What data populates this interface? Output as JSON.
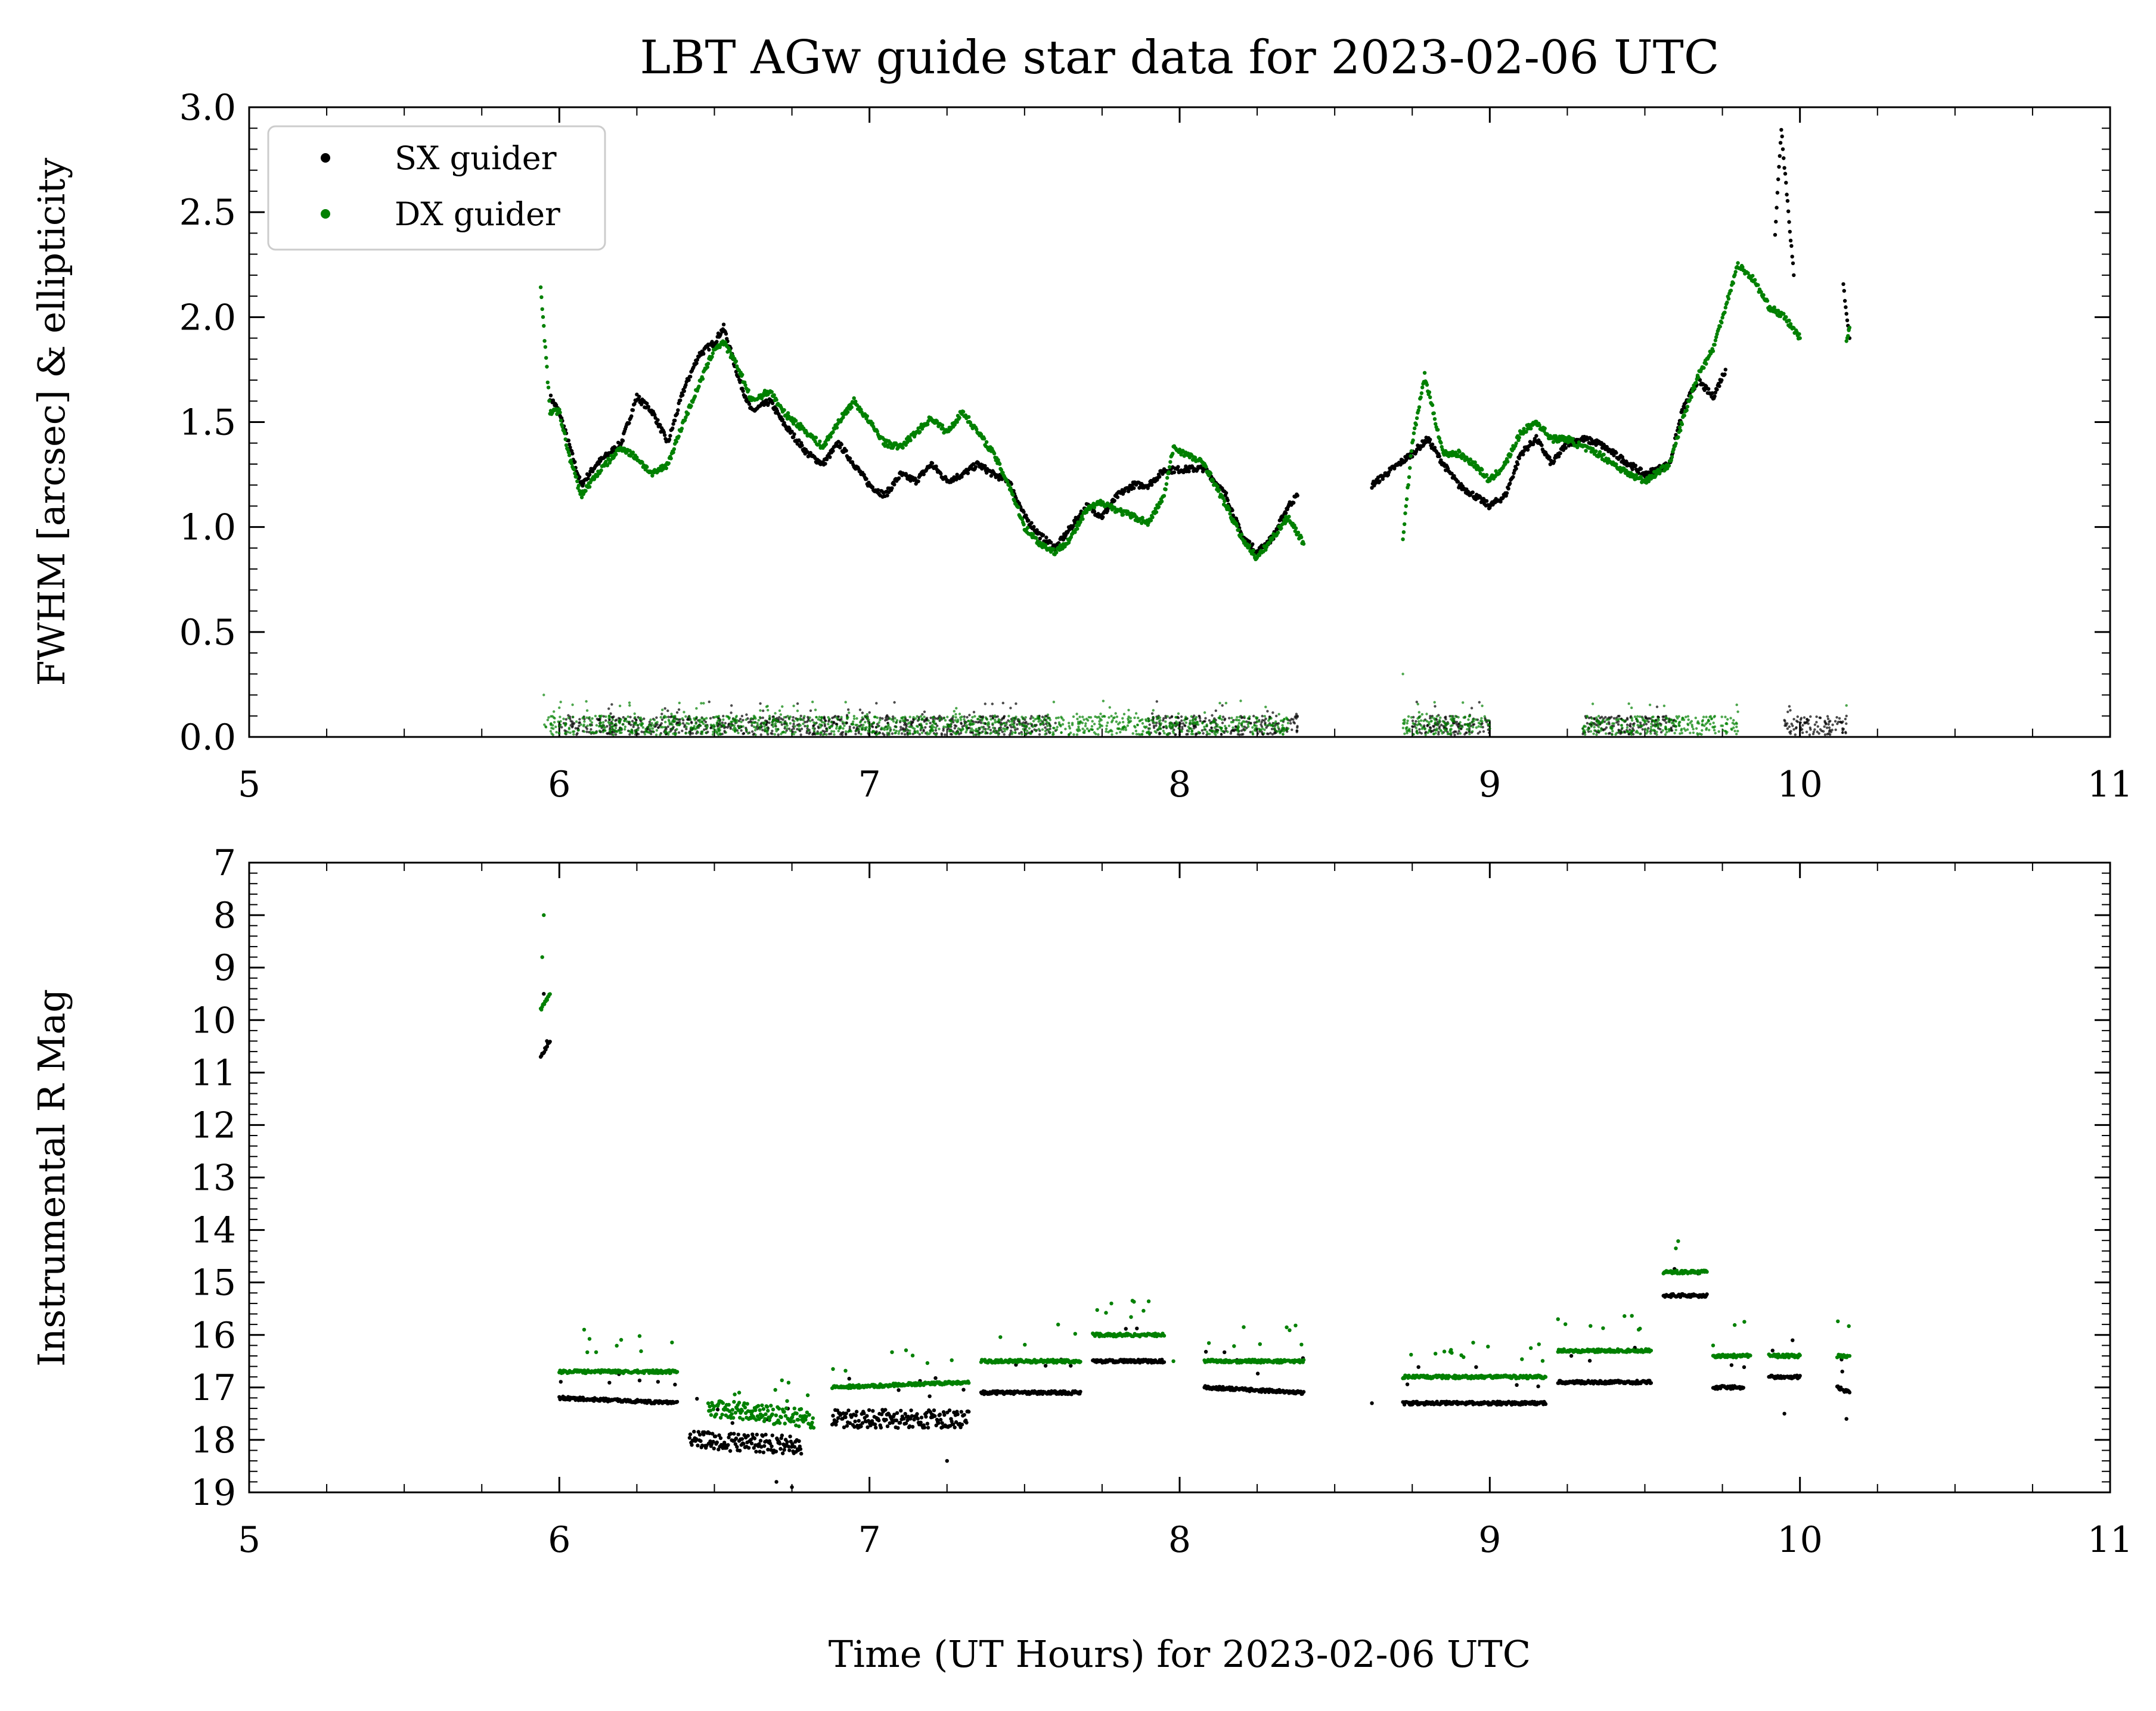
{
  "chart_data": [
    {
      "type": "scatter",
      "title": "LBT AGw guide star data for 2023-02-06 UTC",
      "xlabel": "",
      "ylabel": "FWHM [arcsec] & ellipticity",
      "xlim": [
        5,
        11
      ],
      "ylim": [
        0,
        3
      ],
      "xticks": [
        "5",
        "6",
        "7",
        "8",
        "9",
        "10",
        "11"
      ],
      "yticks": [
        "0.0",
        "0.5",
        "1.0",
        "1.5",
        "2.0",
        "2.5",
        "3.0"
      ],
      "legend": {
        "placement": "top-left",
        "entries": [
          {
            "label": "SX guider",
            "color": "#000000"
          },
          {
            "label": "DX guider",
            "color": "#008000"
          }
        ]
      },
      "series": [
        {
          "name": "SX guider",
          "color": "#000000",
          "fwhm": [
            [
              5.97,
              1.62
            ],
            [
              6.0,
              1.55
            ],
            [
              6.03,
              1.4
            ],
            [
              6.07,
              1.2
            ],
            [
              6.12,
              1.3
            ],
            [
              6.2,
              1.4
            ],
            [
              6.25,
              1.62
            ],
            [
              6.3,
              1.55
            ],
            [
              6.35,
              1.4
            ],
            [
              6.4,
              1.65
            ],
            [
              6.45,
              1.82
            ],
            [
              6.5,
              1.88
            ],
            [
              6.53,
              1.95
            ],
            [
              6.58,
              1.7
            ],
            [
              6.62,
              1.55
            ],
            [
              6.68,
              1.6
            ],
            [
              6.72,
              1.5
            ],
            [
              6.8,
              1.35
            ],
            [
              6.85,
              1.3
            ],
            [
              6.9,
              1.4
            ],
            [
              6.95,
              1.3
            ],
            [
              7.0,
              1.2
            ],
            [
              7.05,
              1.15
            ],
            [
              7.1,
              1.25
            ],
            [
              7.15,
              1.22
            ],
            [
              7.2,
              1.3
            ],
            [
              7.25,
              1.22
            ],
            [
              7.3,
              1.25
            ],
            [
              7.35,
              1.3
            ],
            [
              7.4,
              1.25
            ],
            [
              7.45,
              1.22
            ],
            [
              7.5,
              1.05
            ],
            [
              7.55,
              0.96
            ],
            [
              7.6,
              0.9
            ],
            [
              7.65,
              1.0
            ],
            [
              7.7,
              1.1
            ],
            [
              7.75,
              1.05
            ],
            [
              7.8,
              1.15
            ],
            [
              7.85,
              1.2
            ],
            [
              7.9,
              1.2
            ],
            [
              7.95,
              1.27
            ],
            [
              8.08,
              1.28
            ],
            [
              8.15,
              1.15
            ],
            [
              8.2,
              0.96
            ],
            [
              8.25,
              0.88
            ],
            [
              8.3,
              0.95
            ],
            [
              8.35,
              1.1
            ],
            [
              8.38,
              1.15
            ],
            [
              8.62,
              1.2
            ],
            [
              8.75,
              1.35
            ],
            [
              8.8,
              1.42
            ],
            [
              8.85,
              1.3
            ],
            [
              8.9,
              1.2
            ],
            [
              8.95,
              1.15
            ],
            [
              9.0,
              1.1
            ],
            [
              9.05,
              1.15
            ],
            [
              9.1,
              1.35
            ],
            [
              9.15,
              1.42
            ],
            [
              9.2,
              1.3
            ],
            [
              9.25,
              1.4
            ],
            [
              9.3,
              1.42
            ],
            [
              9.35,
              1.4
            ],
            [
              9.4,
              1.35
            ],
            [
              9.45,
              1.3
            ],
            [
              9.5,
              1.25
            ],
            [
              9.58,
              1.3
            ],
            [
              9.62,
              1.55
            ],
            [
              9.67,
              1.7
            ],
            [
              9.72,
              1.62
            ],
            [
              9.76,
              1.75
            ],
            [
              9.92,
              2.4
            ],
            [
              9.94,
              2.9
            ],
            [
              9.98,
              2.2
            ],
            [
              10.14,
              2.15
            ],
            [
              10.16,
              1.9
            ]
          ],
          "ellipticity": [
            [
              6.0,
              0.05
            ],
            [
              6.2,
              0.04
            ],
            [
              6.5,
              0.05
            ],
            [
              6.8,
              0.04
            ],
            [
              7.0,
              0.04
            ],
            [
              7.3,
              0.05
            ],
            [
              7.6,
              0.03
            ],
            [
              7.9,
              0.04
            ],
            [
              8.2,
              0.03
            ],
            [
              8.38,
              0.1
            ],
            [
              8.75,
              0.05
            ],
            [
              9.0,
              0.04
            ],
            [
              9.3,
              0.04
            ],
            [
              9.6,
              0.05
            ],
            [
              9.95,
              0.08
            ],
            [
              10.15,
              0.1
            ]
          ]
        },
        {
          "name": "DX guider",
          "color": "#008000",
          "fwhm": [
            [
              5.94,
              2.15
            ],
            [
              5.97,
              1.55
            ],
            [
              6.0,
              1.55
            ],
            [
              6.03,
              1.35
            ],
            [
              6.07,
              1.15
            ],
            [
              6.12,
              1.25
            ],
            [
              6.2,
              1.38
            ],
            [
              6.25,
              1.33
            ],
            [
              6.3,
              1.25
            ],
            [
              6.35,
              1.3
            ],
            [
              6.4,
              1.5
            ],
            [
              6.5,
              1.85
            ],
            [
              6.53,
              1.88
            ],
            [
              6.58,
              1.75
            ],
            [
              6.62,
              1.6
            ],
            [
              6.68,
              1.65
            ],
            [
              6.72,
              1.55
            ],
            [
              6.8,
              1.45
            ],
            [
              6.85,
              1.38
            ],
            [
              6.9,
              1.5
            ],
            [
              6.95,
              1.6
            ],
            [
              7.0,
              1.5
            ],
            [
              7.05,
              1.4
            ],
            [
              7.1,
              1.38
            ],
            [
              7.15,
              1.45
            ],
            [
              7.2,
              1.52
            ],
            [
              7.25,
              1.45
            ],
            [
              7.3,
              1.55
            ],
            [
              7.35,
              1.45
            ],
            [
              7.4,
              1.35
            ],
            [
              7.45,
              1.2
            ],
            [
              7.5,
              1.0
            ],
            [
              7.55,
              0.92
            ],
            [
              7.6,
              0.88
            ],
            [
              7.65,
              0.95
            ],
            [
              7.7,
              1.08
            ],
            [
              7.75,
              1.12
            ],
            [
              7.8,
              1.08
            ],
            [
              7.85,
              1.05
            ],
            [
              7.9,
              1.02
            ],
            [
              7.95,
              1.15
            ],
            [
              7.98,
              1.38
            ],
            [
              8.08,
              1.3
            ],
            [
              8.15,
              1.1
            ],
            [
              8.2,
              0.95
            ],
            [
              8.25,
              0.85
            ],
            [
              8.3,
              0.95
            ],
            [
              8.35,
              1.05
            ],
            [
              8.4,
              0.92
            ],
            [
              8.72,
              0.95
            ],
            [
              8.75,
              1.4
            ],
            [
              8.79,
              1.72
            ],
            [
              8.85,
              1.35
            ],
            [
              8.9,
              1.35
            ],
            [
              8.95,
              1.3
            ],
            [
              9.0,
              1.22
            ],
            [
              9.05,
              1.3
            ],
            [
              9.1,
              1.45
            ],
            [
              9.15,
              1.5
            ],
            [
              9.2,
              1.42
            ],
            [
              9.25,
              1.42
            ],
            [
              9.3,
              1.38
            ],
            [
              9.35,
              1.35
            ],
            [
              9.4,
              1.3
            ],
            [
              9.45,
              1.25
            ],
            [
              9.5,
              1.22
            ],
            [
              9.58,
              1.3
            ],
            [
              9.62,
              1.5
            ],
            [
              9.67,
              1.72
            ],
            [
              9.72,
              1.85
            ],
            [
              9.75,
              2.0
            ],
            [
              9.8,
              2.25
            ],
            [
              9.85,
              2.18
            ],
            [
              9.9,
              2.05
            ],
            [
              9.95,
              2.0
            ],
            [
              10.0,
              1.9
            ],
            [
              10.15,
              1.9
            ],
            [
              10.16,
              1.95
            ]
          ],
          "ellipticity": [
            [
              5.95,
              0.2
            ],
            [
              6.0,
              0.05
            ],
            [
              6.2,
              0.04
            ],
            [
              6.5,
              0.05
            ],
            [
              6.8,
              0.05
            ],
            [
              7.0,
              0.04
            ],
            [
              7.3,
              0.04
            ],
            [
              7.5,
              0.03
            ],
            [
              7.8,
              0.04
            ],
            [
              8.1,
              0.03
            ],
            [
              8.35,
              0.04
            ],
            [
              8.72,
              0.3
            ],
            [
              9.0,
              0.04
            ],
            [
              9.3,
              0.04
            ],
            [
              9.6,
              0.05
            ],
            [
              9.8,
              0.12
            ],
            [
              10.15,
              0.15
            ]
          ]
        }
      ]
    },
    {
      "type": "scatter",
      "title": "",
      "xlabel": "Time (UT Hours) for 2023-02-06 UTC",
      "ylabel": "Instrumental R Mag",
      "xlim": [
        5,
        11
      ],
      "ylim": [
        19,
        7
      ],
      "y_inverted": true,
      "xticks": [
        "5",
        "6",
        "7",
        "8",
        "9",
        "10",
        "11"
      ],
      "yticks": [
        "7",
        "8",
        "9",
        "10",
        "11",
        "12",
        "13",
        "14",
        "15",
        "16",
        "17",
        "18",
        "19"
      ],
      "series": [
        {
          "name": "SX guider",
          "color": "#000000",
          "segments": [
            [
              5.94,
              5.97,
              10.7,
              10.4
            ],
            [
              6.0,
              6.38,
              17.2,
              17.3
            ],
            [
              6.42,
              6.78,
              18.0,
              18.1
            ],
            [
              6.88,
              7.32,
              17.6,
              17.6
            ],
            [
              7.36,
              7.68,
              17.1,
              17.1
            ],
            [
              7.72,
              7.95,
              16.5,
              16.5
            ],
            [
              8.08,
              8.4,
              17.0,
              17.1
            ],
            [
              8.72,
              9.18,
              17.3,
              17.3
            ],
            [
              9.22,
              9.52,
              16.9,
              16.9
            ],
            [
              9.56,
              9.7,
              15.25,
              15.25
            ],
            [
              9.72,
              9.82,
              17.0,
              17.0
            ],
            [
              9.9,
              10.0,
              16.8,
              16.8
            ],
            [
              10.12,
              10.16,
              17.0,
              17.1
            ]
          ],
          "points": [
            [
              5.95,
              9.5
            ],
            [
              5.96,
              10.4
            ],
            [
              8.62,
              17.3
            ],
            [
              9.95,
              17.5
            ],
            [
              10.15,
              17.6
            ],
            [
              6.7,
              18.8
            ],
            [
              6.75,
              18.9
            ],
            [
              7.25,
              18.4
            ]
          ]
        },
        {
          "name": "DX guider",
          "color": "#008000",
          "segments": [
            [
              5.94,
              5.97,
              9.8,
              9.5
            ],
            [
              6.0,
              6.38,
              16.7,
              16.7
            ],
            [
              6.48,
              6.82,
              17.4,
              17.6
            ],
            [
              6.88,
              7.32,
              17.0,
              16.9
            ],
            [
              7.36,
              7.68,
              16.5,
              16.5
            ],
            [
              7.72,
              7.95,
              16.0,
              16.0
            ],
            [
              8.08,
              8.4,
              16.5,
              16.5
            ],
            [
              8.72,
              9.18,
              16.8,
              16.8
            ],
            [
              9.22,
              9.52,
              16.3,
              16.3
            ],
            [
              9.56,
              9.7,
              14.8,
              14.8
            ],
            [
              9.72,
              9.84,
              16.4,
              16.4
            ],
            [
              9.9,
              10.0,
              16.4,
              16.4
            ],
            [
              10.12,
              10.16,
              16.4,
              16.4
            ]
          ],
          "points": [
            [
              5.95,
              8.0
            ],
            [
              5.945,
              8.8
            ],
            [
              6.08,
              15.9
            ],
            [
              6.58,
              17.1
            ],
            [
              7.78,
              15.4
            ],
            [
              9.6,
              14.35
            ],
            [
              9.48,
              15.9
            ],
            [
              9.22,
              15.7
            ],
            [
              9.72,
              16.2
            ],
            [
              7.98,
              16.5
            ]
          ]
        }
      ]
    }
  ]
}
